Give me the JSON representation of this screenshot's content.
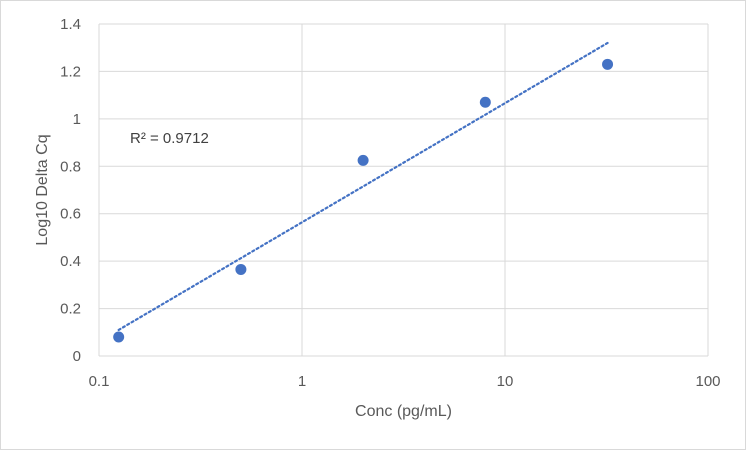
{
  "chart_data": {
    "type": "scatter",
    "title": "",
    "xlabel": "Conc (pg/mL)",
    "ylabel": "Log10 Delta Cq",
    "x_scale": "log",
    "xlim": [
      0.1,
      100
    ],
    "ylim": [
      0,
      1.4
    ],
    "x_ticks": [
      0.1,
      1,
      10,
      100
    ],
    "x_tick_labels": [
      "0.1",
      "1",
      "10",
      "100"
    ],
    "y_ticks": [
      0,
      0.2,
      0.4,
      0.6,
      0.8,
      1.0,
      1.2,
      1.4
    ],
    "y_tick_labels": [
      "0",
      "0.2",
      "0.4",
      "0.6",
      "0.8",
      "1",
      "1.2",
      "1.4"
    ],
    "grid": true,
    "series": [
      {
        "x": [
          0.125,
          0.5,
          2,
          8,
          32
        ],
        "y": [
          0.08,
          0.365,
          0.825,
          1.07,
          1.23
        ],
        "color": "#4472C4"
      }
    ],
    "trendline": {
      "type": "logarithmic",
      "style": "dotted",
      "color": "#4472C4",
      "x_range": [
        0.125,
        32
      ],
      "y_range": [
        0.11,
        1.32
      ]
    },
    "annotations": [
      {
        "text": "R² = 0.9712"
      }
    ]
  }
}
